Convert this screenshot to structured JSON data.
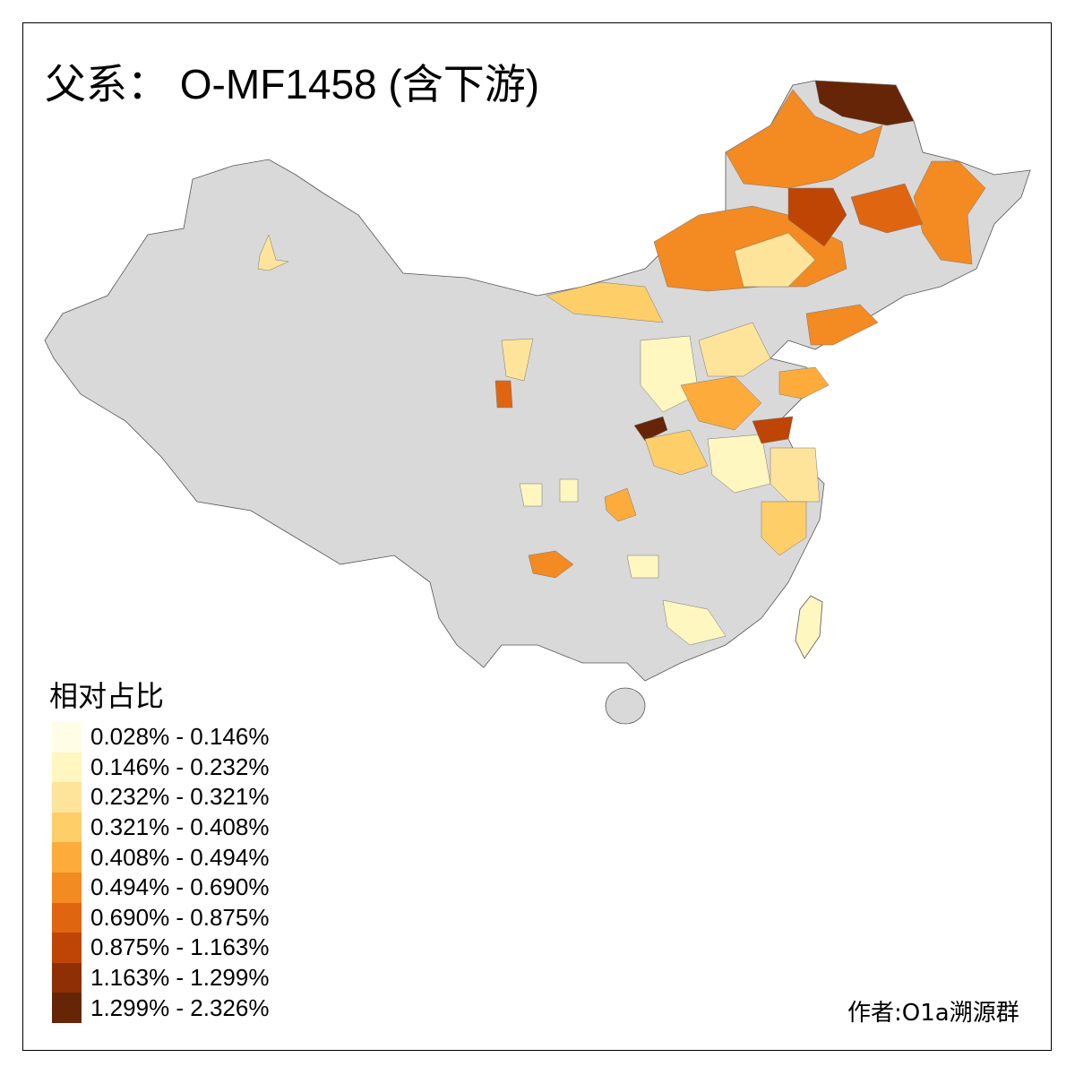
{
  "title": "父系： O-MF1458 (含下游)",
  "legend": {
    "title": "相对占比",
    "items": [
      {
        "label": "0.028% - 0.146%",
        "color": "#fffde6"
      },
      {
        "label": "0.146% - 0.232%",
        "color": "#fff6c0"
      },
      {
        "label": "0.232% - 0.321%",
        "color": "#fee49a"
      },
      {
        "label": "0.321% - 0.408%",
        "color": "#fecf69"
      },
      {
        "label": "0.408% - 0.494%",
        "color": "#fdac3c"
      },
      {
        "label": "0.494% - 0.690%",
        "color": "#f38a22"
      },
      {
        "label": "0.690% - 0.875%",
        "color": "#e06511"
      },
      {
        "label": "0.875% - 1.163%",
        "color": "#bf4505"
      },
      {
        "label": "1.163% - 1.299%",
        "color": "#8f2f05"
      },
      {
        "label": "1.299% - 2.326%",
        "color": "#662506"
      }
    ]
  },
  "no_data_color": "#d9d9d9",
  "credit": "作者:O1a溯源群"
}
